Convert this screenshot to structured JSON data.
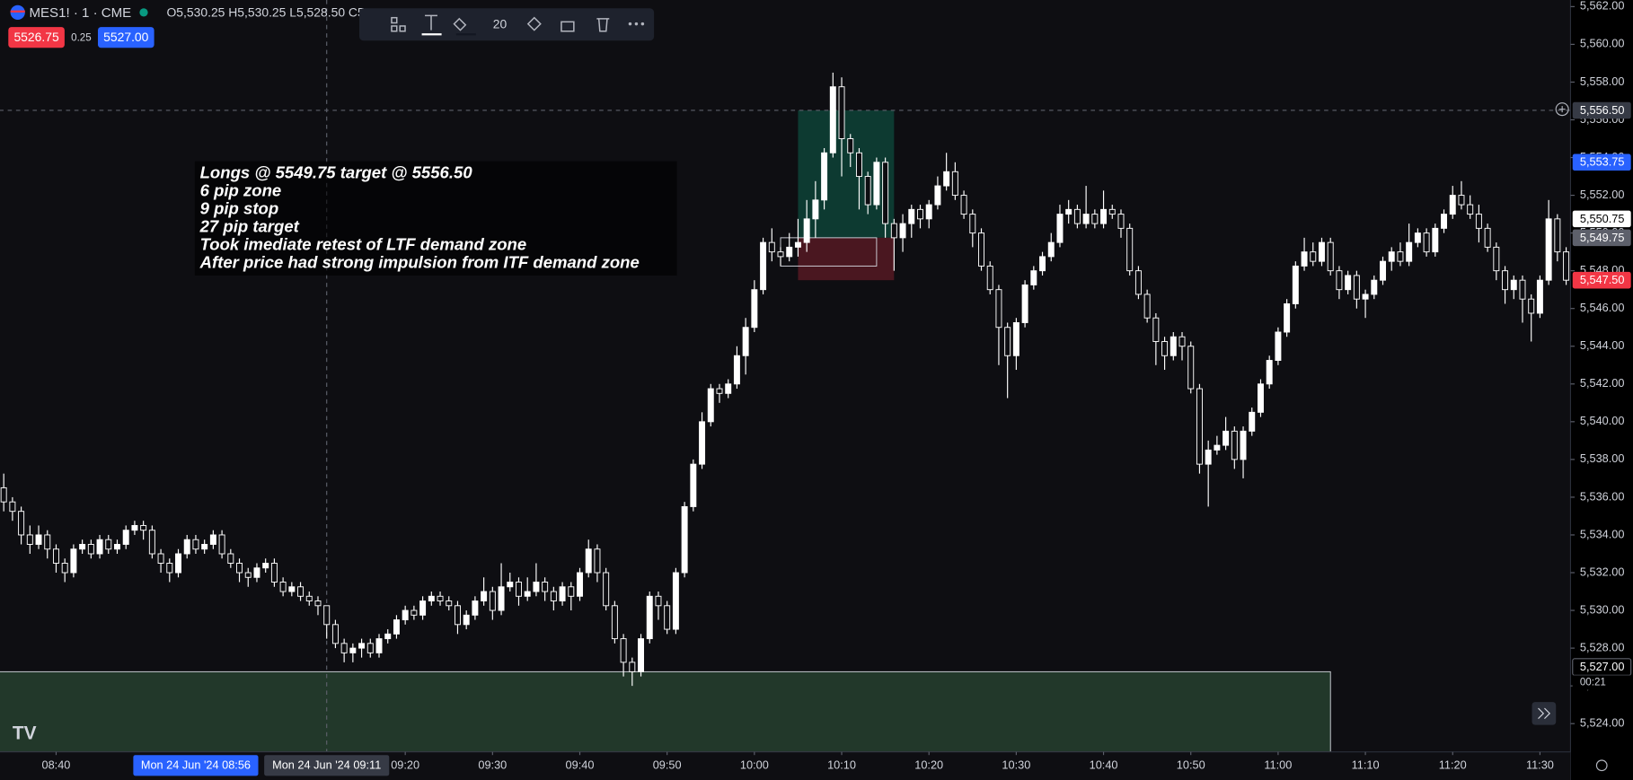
{
  "header": {
    "symbol": "MES1! · 1 · CME",
    "ohlc": "O5,530.25 H5,530.25 L5,528.50 C5,",
    "bid": "5526.75",
    "spread": "0.25",
    "ask": "5527.00"
  },
  "toolbar": {
    "size": "20"
  },
  "chart_data": {
    "type": "candlestick",
    "up_color": "#ffffff",
    "down_color": "#0e0e12",
    "wick_color": "#ffffff",
    "grid": false,
    "x": [
      "08:34",
      "08:35",
      "08:36",
      "08:37",
      "08:38",
      "08:39",
      "08:40",
      "08:41",
      "08:42",
      "08:43",
      "08:44",
      "08:45",
      "08:46",
      "08:47",
      "08:48",
      "08:49",
      "08:50",
      "08:51",
      "08:52",
      "08:53",
      "08:54",
      "08:55",
      "08:56",
      "08:57",
      "08:58",
      "08:59",
      "09:00",
      "09:01",
      "09:02",
      "09:03",
      "09:04",
      "09:05",
      "09:06",
      "09:07",
      "09:08",
      "09:09",
      "09:10",
      "09:11",
      "09:12",
      "09:13",
      "09:14",
      "09:15",
      "09:16",
      "09:17",
      "09:18",
      "09:19",
      "09:20",
      "09:21",
      "09:22",
      "09:23",
      "09:24",
      "09:25",
      "09:26",
      "09:27",
      "09:28",
      "09:29",
      "09:30",
      "09:31",
      "09:32",
      "09:33",
      "09:34",
      "09:35",
      "09:36",
      "09:37",
      "09:38",
      "09:39",
      "09:40",
      "09:41",
      "09:42",
      "09:43",
      "09:44",
      "09:45",
      "09:46",
      "09:47",
      "09:48",
      "09:49",
      "09:50",
      "09:51",
      "09:52",
      "09:53",
      "09:54",
      "09:55",
      "09:56",
      "09:57",
      "09:58",
      "09:59",
      "10:00",
      "10:01",
      "10:02",
      "10:03",
      "10:04",
      "10:05",
      "10:06",
      "10:07",
      "10:08",
      "10:09",
      "10:10",
      "10:11",
      "10:12",
      "10:13",
      "10:14",
      "10:15",
      "10:16",
      "10:17",
      "10:18",
      "10:19",
      "10:20",
      "10:21",
      "10:22",
      "10:23",
      "10:24",
      "10:25",
      "10:26",
      "10:27",
      "10:28",
      "10:29",
      "10:30",
      "10:31",
      "10:32",
      "10:33",
      "10:34",
      "10:35",
      "10:36",
      "10:37",
      "10:38",
      "10:39",
      "10:40",
      "10:41",
      "10:42",
      "10:43",
      "10:44",
      "10:45",
      "10:46",
      "10:47",
      "10:48",
      "10:49",
      "10:50",
      "10:51",
      "10:52",
      "10:53",
      "10:54",
      "10:55",
      "10:56",
      "10:57",
      "10:58",
      "10:59",
      "11:00",
      "11:01",
      "11:02",
      "11:03",
      "11:04",
      "11:05",
      "11:06",
      "11:07",
      "11:08",
      "11:09",
      "11:10",
      "11:11",
      "11:12",
      "11:13",
      "11:14",
      "11:15",
      "11:16",
      "11:17",
      "11:18",
      "11:19",
      "11:20",
      "11:21",
      "11:22",
      "11:23",
      "11:24",
      "11:25",
      "11:26",
      "11:27",
      "11:28",
      "11:29",
      "11:30",
      "11:31",
      "11:32",
      "11:33"
    ],
    "open": [
      5536.5,
      5535.75,
      5535.25,
      5534.0,
      5533.5,
      5534.0,
      5533.25,
      5532.5,
      5532.0,
      5533.25,
      5533.5,
      5533.0,
      5533.75,
      5533.25,
      5533.5,
      5534.25,
      5534.5,
      5534.25,
      5533.0,
      5532.5,
      5532.0,
      5533.0,
      5533.75,
      5533.25,
      5533.5,
      5534.0,
      5533.0,
      5532.5,
      5532.0,
      5531.75,
      5532.25,
      5532.5,
      5531.5,
      5531.0,
      5531.25,
      5530.75,
      5530.5,
      5530.25,
      5529.25,
      5528.25,
      5527.75,
      5528.0,
      5528.25,
      5527.75,
      5528.5,
      5528.75,
      5529.5,
      5530.0,
      5529.75,
      5530.5,
      5530.75,
      5530.5,
      5530.25,
      5529.25,
      5529.75,
      5530.5,
      5531.0,
      5530.0,
      5531.25,
      5531.5,
      5530.75,
      5531.0,
      5531.5,
      5531.0,
      5530.5,
      5531.25,
      5530.75,
      5532.0,
      5533.25,
      5532.0,
      5530.25,
      5528.5,
      5527.25,
      5526.75,
      5528.5,
      5530.75,
      5530.25,
      5529.0,
      5532.0,
      5535.5,
      5537.75,
      5540.0,
      5541.75,
      5541.5,
      5542.0,
      5543.5,
      5545.0,
      5547.0,
      5549.5,
      5549.0,
      5548.75,
      5549.25,
      5549.5,
      5550.75,
      5551.75,
      5554.25,
      5557.75,
      5555.0,
      5554.25,
      5553.0,
      5551.5,
      5553.75,
      5550.5,
      5549.75,
      5550.5,
      5551.25,
      5550.75,
      5551.5,
      5552.5,
      5553.25,
      5552.0,
      5551.0,
      5550.0,
      5548.25,
      5547.0,
      5545.0,
      5543.5,
      5545.25,
      5547.25,
      5548.0,
      5548.75,
      5549.5,
      5551.0,
      5551.25,
      5550.5,
      5551.0,
      5550.5,
      5551.25,
      5551.0,
      5550.25,
      5548.0,
      5546.75,
      5545.5,
      5544.25,
      5543.5,
      5544.5,
      5544.0,
      5541.75,
      5537.75,
      5538.5,
      5538.75,
      5539.5,
      5538.0,
      5539.5,
      5540.5,
      5542.0,
      5543.25,
      5544.75,
      5546.25,
      5548.25,
      5549.0,
      5548.5,
      5549.5,
      5548.0,
      5547.0,
      5547.75,
      5546.5,
      5546.75,
      5547.5,
      5548.5,
      5549.0,
      5548.5,
      5549.5,
      5550.0,
      5549.0,
      5550.25,
      5551.0,
      5552.0,
      5551.5,
      5551.0,
      5550.25,
      5549.25,
      5548.0,
      5547.0,
      5547.5,
      5546.5,
      5545.75,
      5547.5,
      5550.75,
      5549.0
    ],
    "high": [
      5537.25,
      5536.0,
      5535.5,
      5534.5,
      5534.5,
      5534.25,
      5533.5,
      5532.75,
      5533.5,
      5533.75,
      5533.75,
      5534.0,
      5534.0,
      5533.75,
      5534.5,
      5534.75,
      5534.75,
      5534.5,
      5533.25,
      5532.75,
      5533.25,
      5534.0,
      5534.0,
      5533.75,
      5534.25,
      5534.25,
      5533.25,
      5532.75,
      5532.25,
      5532.5,
      5532.75,
      5532.75,
      5531.75,
      5531.5,
      5531.5,
      5531.0,
      5530.75,
      5530.25,
      5529.5,
      5528.5,
      5528.25,
      5528.5,
      5528.5,
      5528.75,
      5529.0,
      5529.75,
      5530.25,
      5530.25,
      5530.75,
      5531.0,
      5531.0,
      5530.75,
      5530.5,
      5530.0,
      5530.75,
      5531.75,
      5531.25,
      5532.5,
      5532.0,
      5531.75,
      5531.75,
      5532.5,
      5531.75,
      5531.25,
      5531.5,
      5531.5,
      5532.25,
      5533.75,
      5533.5,
      5532.25,
      5530.5,
      5528.75,
      5527.5,
      5528.75,
      5531.0,
      5531.0,
      5530.5,
      5532.25,
      5535.75,
      5538.0,
      5540.5,
      5542.0,
      5542.0,
      5542.25,
      5544.0,
      5545.5,
      5547.5,
      5549.75,
      5550.25,
      5549.25,
      5550.0,
      5550.75,
      5551.75,
      5552.75,
      5554.5,
      5558.5,
      5558.25,
      5555.25,
      5554.5,
      5553.25,
      5554.0,
      5554.0,
      5550.75,
      5551.0,
      5551.5,
      5551.5,
      5551.75,
      5553.0,
      5554.25,
      5553.75,
      5552.25,
      5551.25,
      5550.25,
      5548.5,
      5547.25,
      5545.25,
      5545.5,
      5547.5,
      5548.25,
      5549.0,
      5550.0,
      5551.5,
      5551.75,
      5551.5,
      5552.5,
      5551.25,
      5552.25,
      5551.5,
      5551.25,
      5550.5,
      5548.25,
      5547.0,
      5545.75,
      5544.5,
      5544.75,
      5544.75,
      5544.25,
      5542.0,
      5539.0,
      5539.25,
      5540.25,
      5539.75,
      5539.75,
      5540.75,
      5542.25,
      5543.5,
      5545.0,
      5546.5,
      5548.5,
      5549.75,
      5549.5,
      5549.75,
      5549.75,
      5548.25,
      5548.0,
      5548.0,
      5547.0,
      5547.75,
      5548.75,
      5549.25,
      5549.5,
      5550.5,
      5550.25,
      5550.25,
      5550.5,
      5551.25,
      5552.5,
      5552.75,
      5552.0,
      5551.5,
      5550.5,
      5549.5,
      5548.25,
      5547.75,
      5547.75,
      5546.75,
      5547.75,
      5551.75,
      5551.0,
      5549.25
    ],
    "low": [
      5535.25,
      5534.75,
      5533.5,
      5533.0,
      5533.25,
      5532.75,
      5532.0,
      5531.5,
      5531.75,
      5533.0,
      5532.75,
      5532.75,
      5533.0,
      5533.0,
      5533.25,
      5534.0,
      5533.75,
      5532.75,
      5532.0,
      5531.5,
      5531.75,
      5532.75,
      5533.0,
      5533.0,
      5533.25,
      5532.75,
      5532.25,
      5531.5,
      5531.25,
      5531.5,
      5532.0,
      5531.25,
      5530.75,
      5530.75,
      5530.5,
      5530.25,
      5529.75,
      5528.5,
      5528.0,
      5527.25,
      5527.25,
      5527.5,
      5527.5,
      5527.5,
      5528.25,
      5528.5,
      5529.25,
      5529.5,
      5529.5,
      5530.25,
      5530.25,
      5530.0,
      5528.75,
      5529.0,
      5529.5,
      5530.25,
      5529.5,
      5529.75,
      5531.0,
      5530.25,
      5530.5,
      5530.75,
      5530.5,
      5530.0,
      5530.25,
      5530.0,
      5530.5,
      5531.75,
      5531.5,
      5530.0,
      5528.25,
      5526.5,
      5526.0,
      5526.5,
      5528.25,
      5529.5,
      5528.75,
      5528.75,
      5531.75,
      5535.25,
      5537.5,
      5539.75,
      5541.0,
      5541.25,
      5541.75,
      5542.5,
      5544.75,
      5546.75,
      5548.5,
      5548.25,
      5548.5,
      5548.75,
      5549.0,
      5549.75,
      5551.25,
      5554.0,
      5553.0,
      5553.5,
      5551.25,
      5551.0,
      5551.25,
      5549.75,
      5548.0,
      5549.0,
      5549.75,
      5550.25,
      5550.25,
      5551.25,
      5552.25,
      5551.75,
      5550.75,
      5549.25,
      5548.0,
      5546.75,
      5543.0,
      5541.25,
      5542.75,
      5545.0,
      5547.0,
      5547.75,
      5548.5,
      5549.25,
      5550.5,
      5550.25,
      5550.25,
      5550.25,
      5550.25,
      5550.75,
      5549.75,
      5547.75,
      5546.5,
      5545.25,
      5543.0,
      5542.75,
      5543.25,
      5543.25,
      5541.5,
      5537.25,
      5535.5,
      5538.25,
      5538.5,
      5537.5,
      5537.0,
      5539.25,
      5540.25,
      5541.75,
      5543.0,
      5544.5,
      5546.0,
      5548.0,
      5548.25,
      5548.25,
      5547.75,
      5546.5,
      5546.75,
      5546.0,
      5545.5,
      5546.5,
      5547.25,
      5548.0,
      5548.25,
      5548.25,
      5549.25,
      5548.75,
      5548.75,
      5550.0,
      5550.75,
      5551.25,
      5550.75,
      5549.5,
      5549.0,
      5547.5,
      5546.25,
      5546.5,
      5545.25,
      5544.25,
      5545.5,
      5547.25,
      5548.5,
      5547.25
    ],
    "close": [
      5535.75,
      5535.25,
      5534.0,
      5533.5,
      5534.0,
      5533.25,
      5532.5,
      5532.0,
      5533.25,
      5533.5,
      5533.0,
      5533.75,
      5533.25,
      5533.5,
      5534.25,
      5534.5,
      5534.25,
      5533.0,
      5532.5,
      5532.0,
      5533.0,
      5533.75,
      5533.25,
      5533.5,
      5534.0,
      5533.0,
      5532.5,
      5532.0,
      5531.75,
      5532.25,
      5532.5,
      5531.5,
      5531.0,
      5531.25,
      5530.75,
      5530.5,
      5530.25,
      5529.25,
      5528.25,
      5527.75,
      5528.0,
      5528.25,
      5527.75,
      5528.5,
      5528.75,
      5529.5,
      5530.0,
      5529.75,
      5530.5,
      5530.75,
      5530.5,
      5530.25,
      5529.25,
      5529.75,
      5530.5,
      5531.0,
      5530.0,
      5531.25,
      5531.5,
      5530.75,
      5531.0,
      5531.5,
      5531.0,
      5530.5,
      5531.25,
      5530.75,
      5532.0,
      5533.25,
      5532.0,
      5530.25,
      5528.5,
      5527.25,
      5526.75,
      5528.5,
      5530.75,
      5530.25,
      5529.0,
      5532.0,
      5535.5,
      5537.75,
      5540.0,
      5541.75,
      5541.5,
      5542.0,
      5543.5,
      5545.0,
      5547.0,
      5549.5,
      5549.0,
      5548.75,
      5549.25,
      5549.5,
      5550.75,
      5551.75,
      5554.25,
      5557.75,
      5555.0,
      5554.25,
      5553.0,
      5551.5,
      5553.75,
      5550.5,
      5549.75,
      5550.5,
      5551.25,
      5550.75,
      5551.5,
      5552.5,
      5553.25,
      5552.0,
      5551.0,
      5550.0,
      5548.25,
      5547.0,
      5545.0,
      5543.5,
      5545.25,
      5547.25,
      5548.0,
      5548.75,
      5549.5,
      5551.0,
      5551.25,
      5550.5,
      5551.0,
      5550.5,
      5551.25,
      5551.0,
      5550.25,
      5548.0,
      5546.75,
      5545.5,
      5544.25,
      5543.5,
      5544.5,
      5544.0,
      5541.75,
      5537.75,
      5538.5,
      5538.75,
      5539.5,
      5538.0,
      5539.5,
      5540.5,
      5542.0,
      5543.25,
      5544.75,
      5546.25,
      5548.25,
      5549.0,
      5548.5,
      5549.5,
      5548.0,
      5547.0,
      5547.75,
      5546.5,
      5546.75,
      5547.5,
      5548.5,
      5549.0,
      5548.5,
      5549.5,
      5550.0,
      5549.0,
      5550.25,
      5551.0,
      5552.0,
      5551.5,
      5551.0,
      5550.25,
      5549.25,
      5548.0,
      5547.0,
      5547.5,
      5546.5,
      5545.75,
      5547.5,
      5550.75,
      5549.0,
      5547.5
    ],
    "ylim": [
      5522.5,
      5562.35
    ],
    "yticks": [
      {
        "value": 5524,
        "label": "5,524.00"
      },
      {
        "value": 5526,
        "label": "5,526.00"
      },
      {
        "value": 5528,
        "label": "5,528.00"
      },
      {
        "value": 5530,
        "label": "5,530.00"
      },
      {
        "value": 5532,
        "label": "5,532.00"
      },
      {
        "value": 5534,
        "label": "5,534.00"
      },
      {
        "value": 5536,
        "label": "5,536.00"
      },
      {
        "value": 5538,
        "label": "5,538.00"
      },
      {
        "value": 5540,
        "label": "5,540.00"
      },
      {
        "value": 5542,
        "label": "5,542.00"
      },
      {
        "value": 5544,
        "label": "5,544.00"
      },
      {
        "value": 5546,
        "label": "5,546.00"
      },
      {
        "value": 5548,
        "label": "5,548.00"
      },
      {
        "value": 5550,
        "label": "5,550.00"
      },
      {
        "value": 5552,
        "label": "5,552.00"
      },
      {
        "value": 5554,
        "label": "5,554.00"
      },
      {
        "value": 5556,
        "label": "5,556.00"
      },
      {
        "value": 5558,
        "label": "5,558.00"
      },
      {
        "value": 5560,
        "label": "5,560.00"
      },
      {
        "value": 5562,
        "label": "5,562.00"
      }
    ],
    "xticks": [
      "08:40",
      "09:20",
      "09:30",
      "09:40",
      "09:50",
      "10:00",
      "10:10",
      "10:20",
      "10:30",
      "10:40",
      "10:50",
      "11:00",
      "11:10",
      "11:20",
      "11:30"
    ],
    "price_labels": [
      {
        "value": 5553.75,
        "label": "5,553.75",
        "color": "#2962ff"
      },
      {
        "value": 5550.75,
        "label": "5,550.75",
        "color": "#ffffff"
      },
      {
        "value": 5549.75,
        "label": "5,549.75",
        "color": "#5d606b"
      },
      {
        "value": 5547.5,
        "label": "5,547.50",
        "color": "#f23645"
      },
      {
        "value": 5527,
        "label": "5,527.00",
        "color": "#000000"
      }
    ],
    "countdown": "00:21",
    "crosshair": {
      "time": "09:11",
      "price": 5556.5,
      "price_label": "5,556.50",
      "time_label": "Mon 24 Jun '24 09:11"
    },
    "hover": {
      "time": "08:56",
      "time_label": "Mon 24 Jun '24 08:56"
    },
    "position": {
      "start": "10:05",
      "end": "10:16",
      "entry": 5549.75,
      "target": 5556.5,
      "stop": 5547.5,
      "target_color": "#0d3a31",
      "stop_color": "#4a1720"
    },
    "ltf_zone": {
      "start": "10:03",
      "end": "10:14",
      "top": 5549.75,
      "bottom": 5548.25
    },
    "itf_zone": {
      "end": "11:06",
      "top": 5526.75,
      "color": "#22382a"
    },
    "note": {
      "lines": [
        "Longs @ 5549.75 target @ 5556.50",
        "6 pip zone",
        "9 pip stop",
        "27 pip target",
        "Took imediate retest of LTF demand zone",
        "After price had strong impulsion from ITF demand zone"
      ]
    }
  }
}
